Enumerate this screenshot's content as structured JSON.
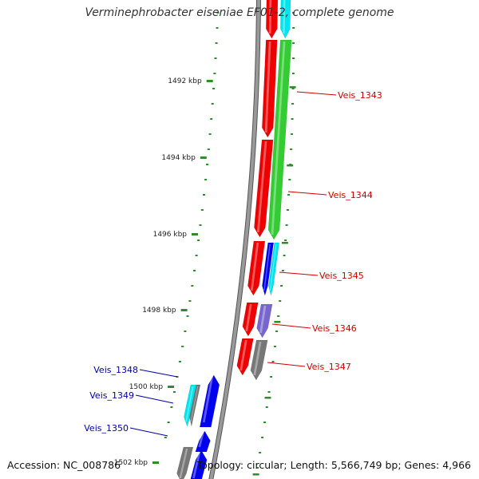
{
  "title": "Verminephrobacter eiseniae EF01-2, complete genome",
  "footer": {
    "accession": "Accession: NC_008786",
    "summary": "Topology: circular; Length: 5,566,749 bp; Genes: 4,966"
  },
  "colors": {
    "backbone": "#888888",
    "tick": "#2e8b2e",
    "label_right": "#cc0000",
    "label_left": "#0000aa",
    "red": "#ee0000",
    "green": "#33cc33",
    "cyan": "#00e5ee",
    "blue": "#0000ee",
    "purple": "#7766cc",
    "gray": "#777777"
  },
  "scale_labels": [
    "1492 kbp",
    "1494 kbp",
    "1496 kbp",
    "1498 kbp",
    "1500 kbp",
    "1502 kbp"
  ],
  "gene_labels": [
    {
      "text": "Veis_1343",
      "side": "right"
    },
    {
      "text": "Veis_1344",
      "side": "right"
    },
    {
      "text": "Veis_1345",
      "side": "right"
    },
    {
      "text": "Veis_1346",
      "side": "right"
    },
    {
      "text": "Veis_1347",
      "side": "right"
    },
    {
      "text": "Veis_1348",
      "side": "left"
    },
    {
      "text": "Veis_1349",
      "side": "left"
    },
    {
      "text": "Veis_1350",
      "side": "left"
    }
  ]
}
